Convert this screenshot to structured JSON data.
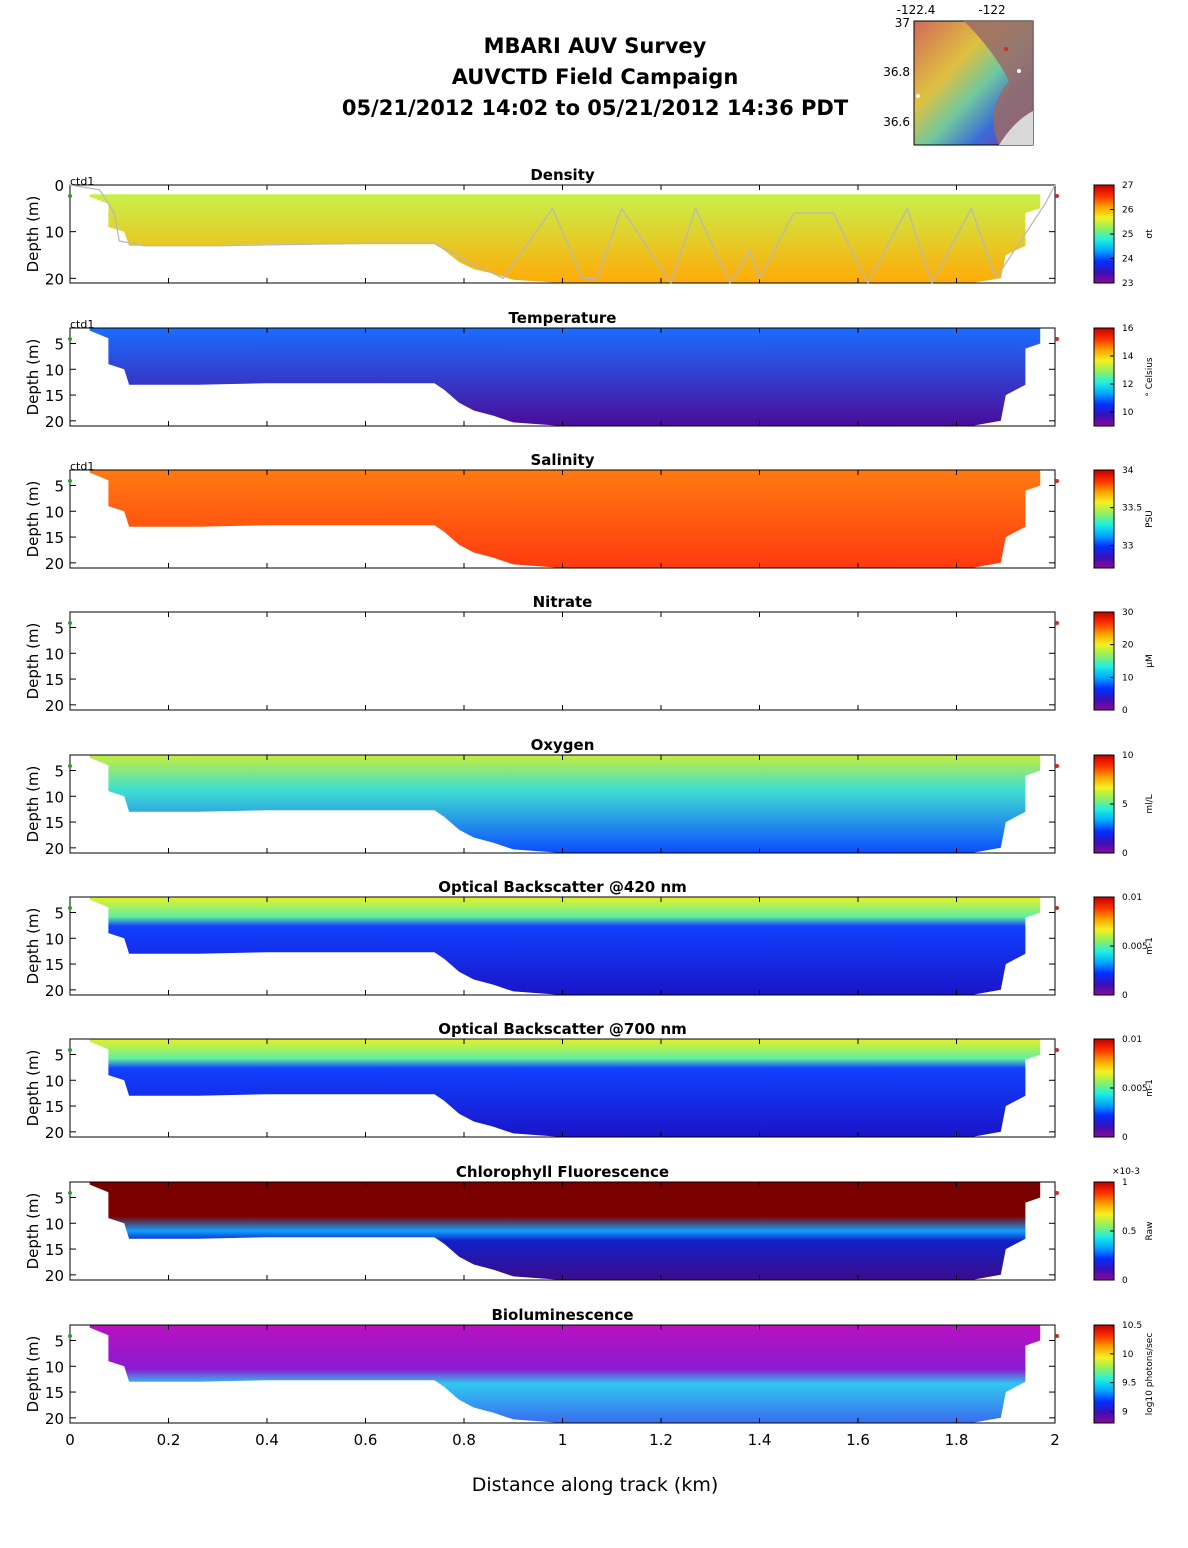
{
  "header": {
    "line1": "MBARI AUV Survey",
    "line2": "AUVCTD Field Campaign",
    "line3": "05/21/2012 14:02  to 05/21/2012 14:36 PDT"
  },
  "inset_map": {
    "lon_ticks": [
      "-122.4",
      "-122"
    ],
    "lat_ticks": [
      "37",
      "36.8",
      "36.6"
    ]
  },
  "xaxis": {
    "label": "Distance along track (km)",
    "ticks": [
      "0",
      "0.2",
      "0.4",
      "0.6",
      "0.8",
      "1",
      "1.2",
      "1.4",
      "1.6",
      "1.8",
      "2"
    ],
    "range": [
      0,
      2
    ]
  },
  "chart_data": [
    {
      "type": "heatmap",
      "title": "Density",
      "platform_label": "ctd1",
      "ylabel": "Depth (m)",
      "yticks": [
        "0",
        "10",
        "20"
      ],
      "ylim": [
        21,
        0
      ],
      "colorbar": {
        "label": "σt",
        "ticks": [
          "27",
          "26",
          "25",
          "24",
          "23"
        ],
        "range": [
          23,
          27
        ]
      },
      "colors": {
        "top": "#c8f04a",
        "bottom": "#ffab08"
      }
    },
    {
      "type": "heatmap",
      "title": "Temperature",
      "platform_label": "ctd1",
      "ylabel": "Depth (m)",
      "yticks": [
        "5",
        "10",
        "15",
        "20"
      ],
      "ylim": [
        21,
        2
      ],
      "colorbar": {
        "label": "° Celsius",
        "ticks": [
          "16",
          "14",
          "12",
          "10"
        ],
        "range": [
          9,
          16
        ]
      },
      "colors": {
        "top": "#1a6dff",
        "bottom": "#4a0c9a"
      }
    },
    {
      "type": "heatmap",
      "title": "Salinity",
      "platform_label": "ctd1",
      "ylabel": "Depth (m)",
      "yticks": [
        "5",
        "10",
        "15",
        "20"
      ],
      "ylim": [
        21,
        2
      ],
      "colorbar": {
        "label": "PSU",
        "ticks": [
          "34",
          "33.5",
          "33"
        ],
        "range": [
          32.7,
          34
        ]
      },
      "colors": {
        "top": "#ff7a10",
        "bottom": "#ff3a10"
      }
    },
    {
      "type": "heatmap",
      "title": "Nitrate",
      "ylabel": "Depth (m)",
      "yticks": [
        "5",
        "10",
        "15",
        "20"
      ],
      "ylim": [
        21,
        2
      ],
      "colorbar": {
        "label": "μM",
        "ticks": [
          "30",
          "20",
          "10",
          "0"
        ],
        "range": [
          0,
          30
        ]
      }
    },
    {
      "type": "heatmap",
      "title": "Oxygen",
      "ylabel": "Depth (m)",
      "yticks": [
        "5",
        "10",
        "15",
        "20"
      ],
      "ylim": [
        21,
        2
      ],
      "colorbar": {
        "label": "ml/L",
        "ticks": [
          "10",
          "5",
          "0"
        ],
        "range": [
          0,
          10
        ]
      },
      "colors": {
        "top": "#c6ee3c",
        "bottom": "#0c4cff"
      }
    },
    {
      "type": "heatmap",
      "title": "Optical Backscatter @420 nm",
      "ylabel": "Depth (m)",
      "yticks": [
        "5",
        "10",
        "15",
        "20"
      ],
      "ylim": [
        21,
        2
      ],
      "colorbar": {
        "label": "m-1",
        "ticks": [
          "0.01",
          "0.005",
          "0"
        ],
        "range": [
          0,
          0.01
        ]
      },
      "colors": {
        "top": "#e8f020",
        "bottom": "#1a14c8"
      }
    },
    {
      "type": "heatmap",
      "title": "Optical Backscatter @700 nm",
      "ylabel": "Depth (m)",
      "yticks": [
        "5",
        "10",
        "15",
        "20"
      ],
      "ylim": [
        21,
        2
      ],
      "colorbar": {
        "label": "m-1",
        "ticks": [
          "0.01",
          "0.005",
          "0"
        ],
        "range": [
          0,
          0.01
        ]
      },
      "colors": {
        "top": "#e8f020",
        "bottom": "#1a14c8"
      }
    },
    {
      "type": "heatmap",
      "title": "Chlorophyll Fluorescence",
      "ylabel": "Depth (m)",
      "yticks": [
        "5",
        "10",
        "15",
        "20"
      ],
      "ylim": [
        21,
        2
      ],
      "colorbar": {
        "label": "Raw",
        "ticks": [
          "1",
          "0.5",
          "0"
        ],
        "range": [
          0,
          1
        ],
        "exponent": "×10-3"
      },
      "colors": {
        "top": "#7a0000",
        "bottom": "#3c0c8c"
      }
    },
    {
      "type": "heatmap",
      "title": "Bioluminescence",
      "ylabel": "Depth (m)",
      "yticks": [
        "5",
        "10",
        "15",
        "20"
      ],
      "ylim": [
        21,
        2
      ],
      "colorbar": {
        "label": "log10 photons/sec",
        "ticks": [
          "10.5",
          "10",
          "9.5",
          "9"
        ],
        "range": [
          8.8,
          10.5
        ]
      },
      "colors": {
        "top": "#b812c0",
        "bottom": "#3a6cf0"
      }
    }
  ]
}
